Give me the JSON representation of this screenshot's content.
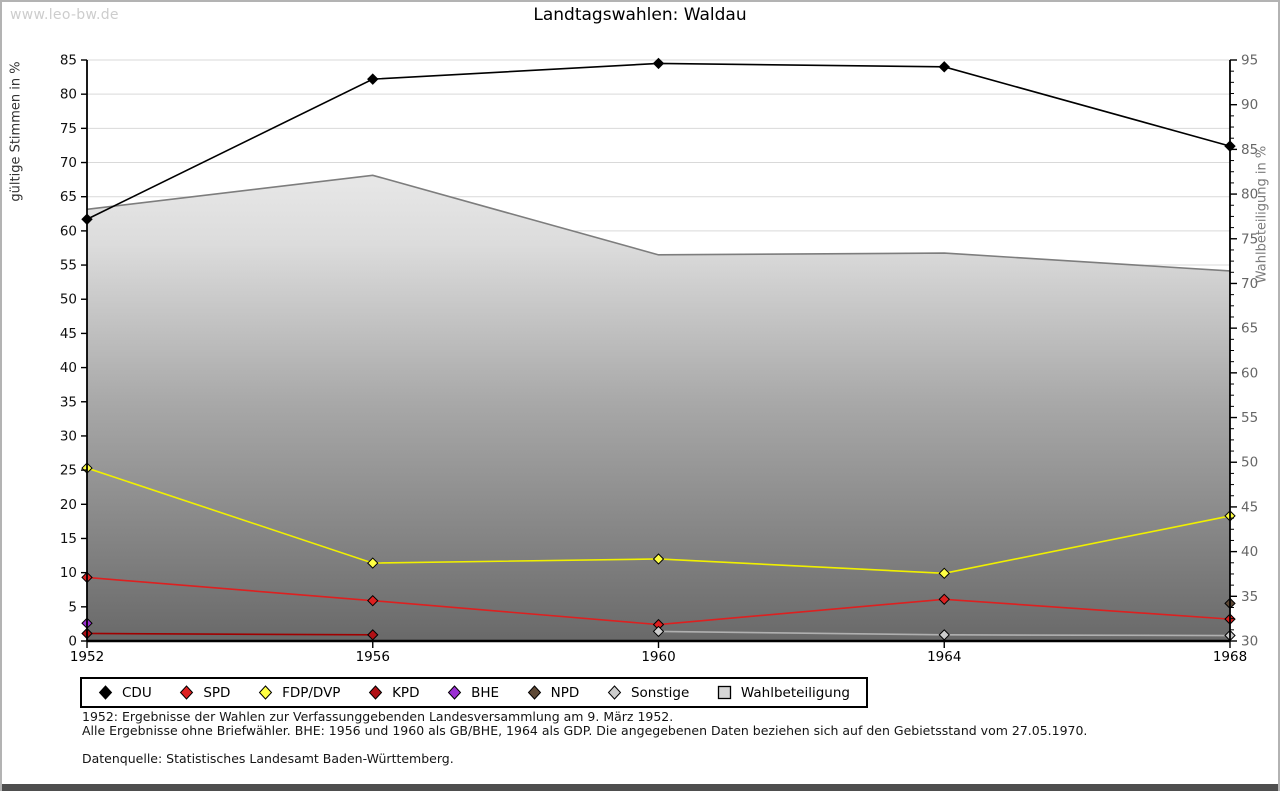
{
  "page": {
    "watermark": "www.leo-bw.de",
    "title": "Landtagswahlen: Waldau"
  },
  "chart_data": {
    "type": "line",
    "title": "Landtagswahlen: Waldau",
    "x": [
      1952,
      1956,
      1960,
      1964,
      1968
    ],
    "xlabel": "",
    "ylabel_left": "gültige Stimmen in %",
    "ylabel_right": "Wahlbeteiligung in %",
    "ylim_left": [
      0,
      85
    ],
    "ylim_right": [
      30,
      95
    ],
    "ytick_step": 5,
    "grid": "horizontal gridlines every 5 units of left axis",
    "legend_position": "boxed row below plot",
    "colors": {
      "grid": "#d9d9d9",
      "axis": "#000000",
      "right_tick_text": "#666666",
      "area_edge": "#7d7d7d",
      "area_gradient_top": "#f2f2f2",
      "area_gradient_bottom": "#696969"
    },
    "series": [
      {
        "name": "CDU",
        "axis": "left",
        "style": "line+diamond",
        "color": "#000000",
        "marker_fill": "#000000",
        "values": [
          61.7,
          82.2,
          84.5,
          84.0,
          72.4
        ]
      },
      {
        "name": "SPD",
        "axis": "left",
        "style": "line+diamond",
        "color": "#dd2020",
        "marker_fill": "#dd2020",
        "values": [
          9.3,
          5.9,
          2.4,
          6.1,
          3.2
        ]
      },
      {
        "name": "FDP/DVP",
        "axis": "left",
        "style": "line+diamond",
        "color": "#f0f000",
        "marker_fill": "#ffff44",
        "values": [
          25.3,
          11.4,
          12.0,
          9.9,
          18.3
        ]
      },
      {
        "name": "KPD",
        "axis": "left",
        "style": "line+diamond",
        "color": "#a00000",
        "marker_fill": "#b01015",
        "values": [
          1.1,
          0.9,
          null,
          null,
          null
        ]
      },
      {
        "name": "BHE",
        "axis": "left",
        "style": "line+diamond",
        "color": "#9a2fd2",
        "marker_fill": "#9a2fd2",
        "values": [
          2.6,
          null,
          null,
          null,
          null
        ]
      },
      {
        "name": "NPD",
        "axis": "left",
        "style": "line+diamond",
        "color": "#5e4936",
        "marker_fill": "#5e4936",
        "values": [
          null,
          null,
          null,
          null,
          5.5
        ]
      },
      {
        "name": "Sonstige",
        "axis": "left",
        "style": "line+diamond",
        "color": "#b0b0b0",
        "marker_fill": "#cccccc",
        "values": [
          null,
          null,
          1.4,
          0.9,
          0.8
        ]
      },
      {
        "name": "Wahlbeteiligung",
        "axis": "right",
        "style": "area",
        "color": "#7d7d7d",
        "marker_fill": "#d6d6d6",
        "values": [
          78.3,
          82.1,
          73.2,
          73.4,
          71.4
        ]
      }
    ]
  },
  "footnotes": {
    "line1": "1952: Ergebnisse der Wahlen zur Verfassunggebenden Landesversammlung am 9. März 1952.",
    "line2": "Alle Ergebnisse ohne Briefwähler. BHE: 1956 und 1960 als GB/BHE, 1964 als GDP. Die angegebenen Daten beziehen sich auf den Gebietsstand vom 27.05.1970.",
    "source": "Datenquelle: Statistisches Landesamt Baden-Württemberg."
  }
}
